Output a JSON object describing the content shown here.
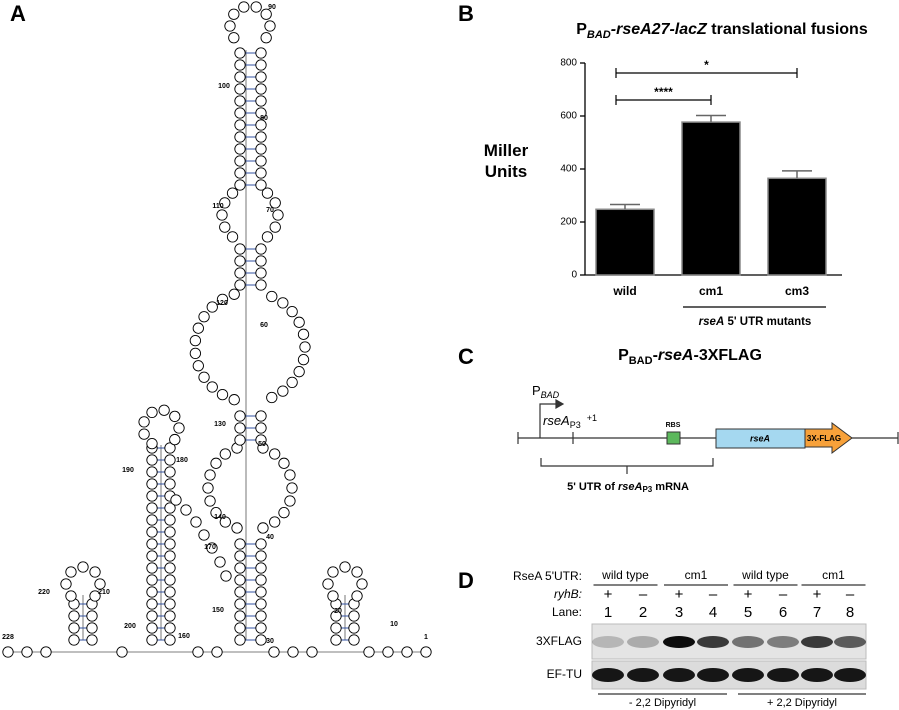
{
  "panel_labels": [
    "A",
    "B",
    "C",
    "D"
  ],
  "panel_a": {
    "position_labels": [
      "1",
      "10",
      "20",
      "30",
      "40",
      "50",
      "60",
      "70",
      "80",
      "90",
      "100",
      "110",
      "120",
      "130",
      "140",
      "150",
      "160",
      "170",
      "180",
      "190",
      "200",
      "210",
      "220",
      "228"
    ]
  },
  "chart_data": {
    "type": "bar",
    "title": [
      "P",
      "BAD",
      "-rseA27-lacZ",
      " translational fusions"
    ],
    "y_label": "Miller Units",
    "categories": [
      "wild",
      "cm1",
      "cm3"
    ],
    "values": [
      248,
      577,
      365
    ],
    "errors": [
      18,
      25,
      28
    ],
    "color": "#000000",
    "ylim": [
      0,
      800
    ],
    "yticks": [
      0,
      200,
      400,
      600,
      800
    ],
    "significance": [
      "****",
      "*"
    ],
    "group_label": [
      "rseA",
      " 5' UTR mutants"
    ]
  },
  "panel_c": {
    "title": [
      "P",
      "BAD",
      "-",
      "rseA",
      "-3XFLAG"
    ],
    "promoter": [
      "P",
      "BAD"
    ],
    "tss": [
      "rseA",
      "P3",
      "+1"
    ],
    "rbs": "RBS",
    "gene": "rseA",
    "tag": "3X-FLAG",
    "utr": [
      "5' UTR of ",
      "rseA",
      "P3",
      " mRNA"
    ]
  },
  "panel_d": {
    "row_headers": [
      "RseA 5'UTR:",
      "ryhB:",
      "Lane:"
    ],
    "groups": [
      "wild type",
      "cm1",
      "wild type",
      "cm1"
    ],
    "ryhb": [
      "+",
      "–",
      "+",
      "–",
      "+",
      "–",
      "+",
      "–"
    ],
    "lanes": [
      1,
      2,
      3,
      4,
      5,
      6,
      7,
      8
    ],
    "bands": [
      "3XFLAG",
      "EF-TU"
    ],
    "conditions": [
      "- 2,2 Dipyridyl",
      "+ 2,2 Dipyridyl"
    ]
  }
}
